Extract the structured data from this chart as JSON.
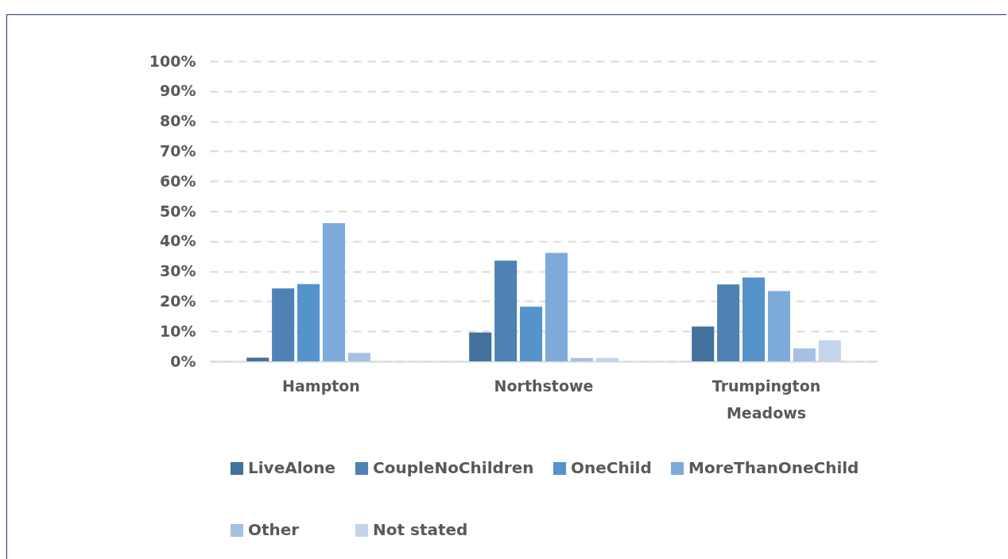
{
  "chart_data": {
    "type": "bar",
    "categories": [
      "Hampton",
      "Northstowe",
      "Trumpington Meadows"
    ],
    "series": [
      {
        "name": "LiveAlone",
        "color": "#41719c",
        "values": [
          1.2,
          9.6,
          11.6
        ]
      },
      {
        "name": "CoupleNoChildren",
        "color": "#4e81b4",
        "values": [
          24.3,
          33.5,
          25.6
        ]
      },
      {
        "name": "OneChild",
        "color": "#5593cb",
        "values": [
          25.7,
          18.2,
          27.9
        ]
      },
      {
        "name": "MoreThanOneChild",
        "color": "#7eaad9",
        "values": [
          46.0,
          36.1,
          23.4
        ]
      },
      {
        "name": "Other",
        "color": "#a5c0e3",
        "values": [
          2.8,
          1.1,
          4.3
        ]
      },
      {
        "name": "Not stated",
        "color": "#c3d4eb",
        "values": [
          0,
          1.1,
          7.0
        ]
      }
    ],
    "ylim": [
      0,
      100
    ],
    "yticks": [
      {
        "value": 0,
        "label": "0%"
      },
      {
        "value": 10,
        "label": "10%"
      },
      {
        "value": 20,
        "label": "20%"
      },
      {
        "value": 30,
        "label": "30%"
      },
      {
        "value": 40,
        "label": "40%"
      },
      {
        "value": 50,
        "label": "50%"
      },
      {
        "value": 60,
        "label": "60%"
      },
      {
        "value": 70,
        "label": "70%"
      },
      {
        "value": 80,
        "label": "80%"
      },
      {
        "value": 90,
        "label": "90%"
      },
      {
        "value": 100,
        "label": "100%"
      }
    ],
    "grid": "y",
    "legend": "bottom"
  }
}
